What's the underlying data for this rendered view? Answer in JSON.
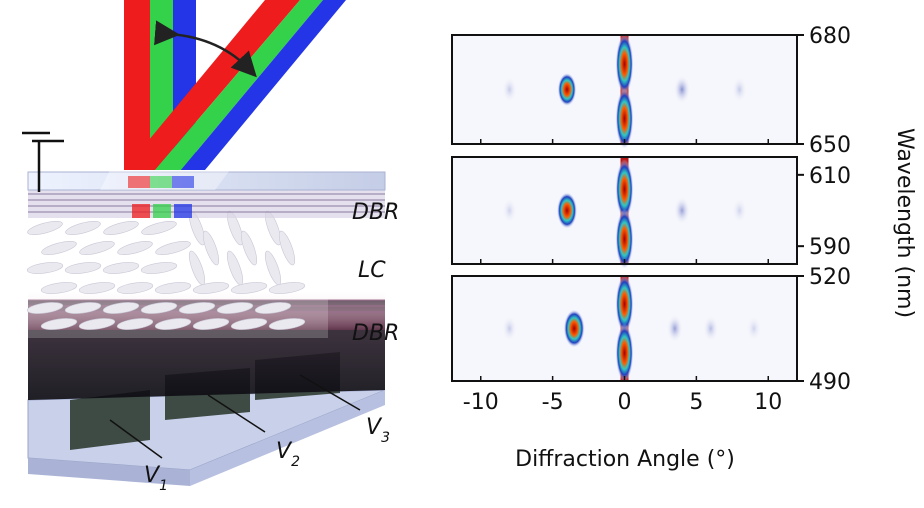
{
  "device_diagram": {
    "labels": {
      "top_dbr": "DBR",
      "lc": "LC",
      "bottom_dbr": "DBR",
      "v1_main": "V",
      "v1_sub": "1",
      "v2_main": "V",
      "v2_sub": "2",
      "v3_main": "V",
      "v3_sub": "3"
    },
    "colors": {
      "red": "#ee1c1c",
      "green": "#33d24a",
      "blue": "#2335e6",
      "lc_ellipse": "#e9e9ef"
    }
  },
  "chart_data": {
    "type": "heatmap",
    "xlabel": "Diffraction Angle (°)",
    "ylabel": "Wavelength (nm)",
    "xlim": [
      -12,
      12
    ],
    "xticks": [
      -10,
      -5,
      0,
      5,
      10
    ],
    "panels": [
      {
        "ylim": [
          650,
          680
        ],
        "yticks": [
          680,
          650
        ],
        "spots": [
          {
            "x": 0,
            "y": 672,
            "intensity": 1.0
          },
          {
            "x": 0,
            "y": 657,
            "intensity": 1.0
          },
          {
            "x": -4,
            "y": 665,
            "intensity": 0.6
          },
          {
            "x": 4,
            "y": 665,
            "intensity": 0.35
          },
          {
            "x": -8,
            "y": 665,
            "intensity": 0.15
          },
          {
            "x": 8,
            "y": 665,
            "intensity": 0.15
          }
        ]
      },
      {
        "ylim": [
          585,
          615
        ],
        "yticks": [
          610,
          590
        ],
        "spots": [
          {
            "x": 0,
            "y": 606,
            "intensity": 1.0
          },
          {
            "x": 0,
            "y": 592,
            "intensity": 1.0
          },
          {
            "x": -4,
            "y": 600,
            "intensity": 0.8
          },
          {
            "x": 4,
            "y": 600,
            "intensity": 0.3
          },
          {
            "x": -8,
            "y": 600,
            "intensity": 0.12
          },
          {
            "x": 8,
            "y": 600,
            "intensity": 0.12
          }
        ]
      },
      {
        "ylim": [
          490,
          520
        ],
        "yticks": [
          520,
          490
        ],
        "spots": [
          {
            "x": 0,
            "y": 512,
            "intensity": 1.0
          },
          {
            "x": 0,
            "y": 498,
            "intensity": 1.0
          },
          {
            "x": -3.5,
            "y": 505,
            "intensity": 0.9
          },
          {
            "x": 3.5,
            "y": 505,
            "intensity": 0.3
          },
          {
            "x": -8,
            "y": 505,
            "intensity": 0.15
          },
          {
            "x": 6,
            "y": 505,
            "intensity": 0.2
          },
          {
            "x": 9,
            "y": 505,
            "intensity": 0.12
          }
        ]
      }
    ]
  }
}
